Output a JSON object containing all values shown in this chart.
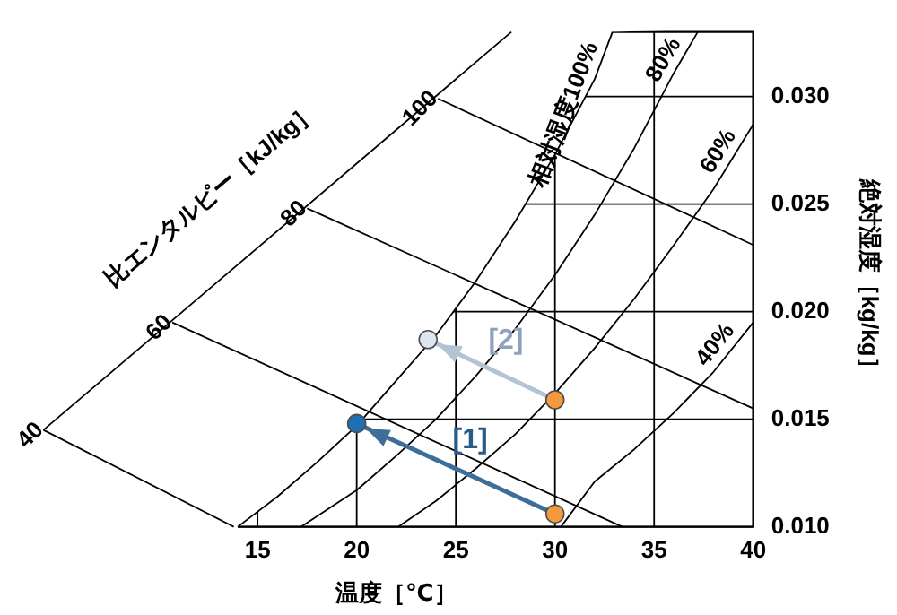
{
  "chart_data": {
    "type": "line",
    "xlabel": "温度［℃］",
    "ylabel": "絶対湿度［kg/kg］",
    "xlim": [
      4,
      40
    ],
    "xticks": [
      15,
      20,
      25,
      30,
      35,
      40
    ],
    "ylim": [
      0.01,
      0.033
    ],
    "yticks": [
      {
        "value": 0.01,
        "label": "0.010"
      },
      {
        "value": 0.015,
        "label": "0.015"
      },
      {
        "value": 0.02,
        "label": "0.020"
      },
      {
        "value": 0.025,
        "label": "0.025"
      },
      {
        "value": 0.03,
        "label": "0.030"
      }
    ],
    "grid": true,
    "legend": false,
    "marker": "none",
    "line_style": "solid",
    "annotations": [
      "[1]",
      "[2]"
    ],
    "series": [
      {
        "name": "相対湿度100%",
        "color": "#000000",
        "x": [
          14.0,
          16,
          18,
          20,
          22,
          24,
          26,
          28,
          30,
          32,
          32.9
        ],
        "values": [
          0.01,
          0.0114,
          0.013,
          0.0147,
          0.0168,
          0.0189,
          0.0214,
          0.0242,
          0.0273,
          0.0308,
          0.033
        ]
      },
      {
        "name": "80%",
        "color": "#000000",
        "x": [
          17.2,
          20,
          22,
          24,
          26,
          28,
          30,
          32,
          34,
          36,
          37.2
        ],
        "values": [
          0.01,
          0.0117,
          0.0133,
          0.015,
          0.017,
          0.0192,
          0.0217,
          0.0245,
          0.0276,
          0.0311,
          0.033
        ]
      },
      {
        "name": "60%",
        "color": "#000000",
        "x": [
          22.1,
          24,
          26,
          28,
          30,
          32,
          34,
          36,
          38,
          40
        ],
        "values": [
          0.01,
          0.0112,
          0.0127,
          0.0143,
          0.0162,
          0.0183,
          0.0206,
          0.0231,
          0.0257,
          0.0287
        ]
      },
      {
        "name": "40%",
        "color": "#000000",
        "x": [
          30.3,
          32,
          34,
          36,
          38,
          40
        ],
        "values": [
          0.01,
          0.0121,
          0.0136,
          0.0153,
          0.0172,
          0.0195
        ]
      },
      {
        "name": "比エンタルピー［kJ/kg］",
        "color": "#000000",
        "x": [
          4.2,
          27.8
        ],
        "values": [
          0.0145,
          0.033
        ]
      },
      {
        "name": "40",
        "color": "#000000",
        "x": [
          4.2,
          13.8
        ],
        "values": [
          0.0145,
          0.01
        ]
      },
      {
        "name": "60",
        "color": "#000000",
        "x": [
          10.7,
          33.4
        ],
        "values": [
          0.0195,
          0.01
        ]
      },
      {
        "name": "80",
        "color": "#000000",
        "x": [
          17.5,
          40
        ],
        "values": [
          0.0248,
          0.0155
        ]
      },
      {
        "name": "100",
        "color": "#000000",
        "x": [
          24.1,
          40
        ],
        "values": [
          0.0299,
          0.0231
        ]
      },
      {
        "color": "#3d6e99",
        "x": [
          30,
          20
        ],
        "values": [
          0.0106,
          0.0148
        ]
      },
      {
        "color": "#b4c3d4",
        "x": [
          30,
          23.6
        ],
        "values": [
          0.0159,
          0.0187
        ]
      },
      {
        "type": "scatter",
        "marker": "circle",
        "x": [
          30,
          30,
          20,
          23.6
        ],
        "values": [
          0.0106,
          0.0159,
          0.0148,
          0.0187
        ],
        "colors": [
          "#f39a3c",
          "#f39a3c",
          "#1f6fb5",
          "#dde6f0"
        ]
      }
    ]
  }
}
